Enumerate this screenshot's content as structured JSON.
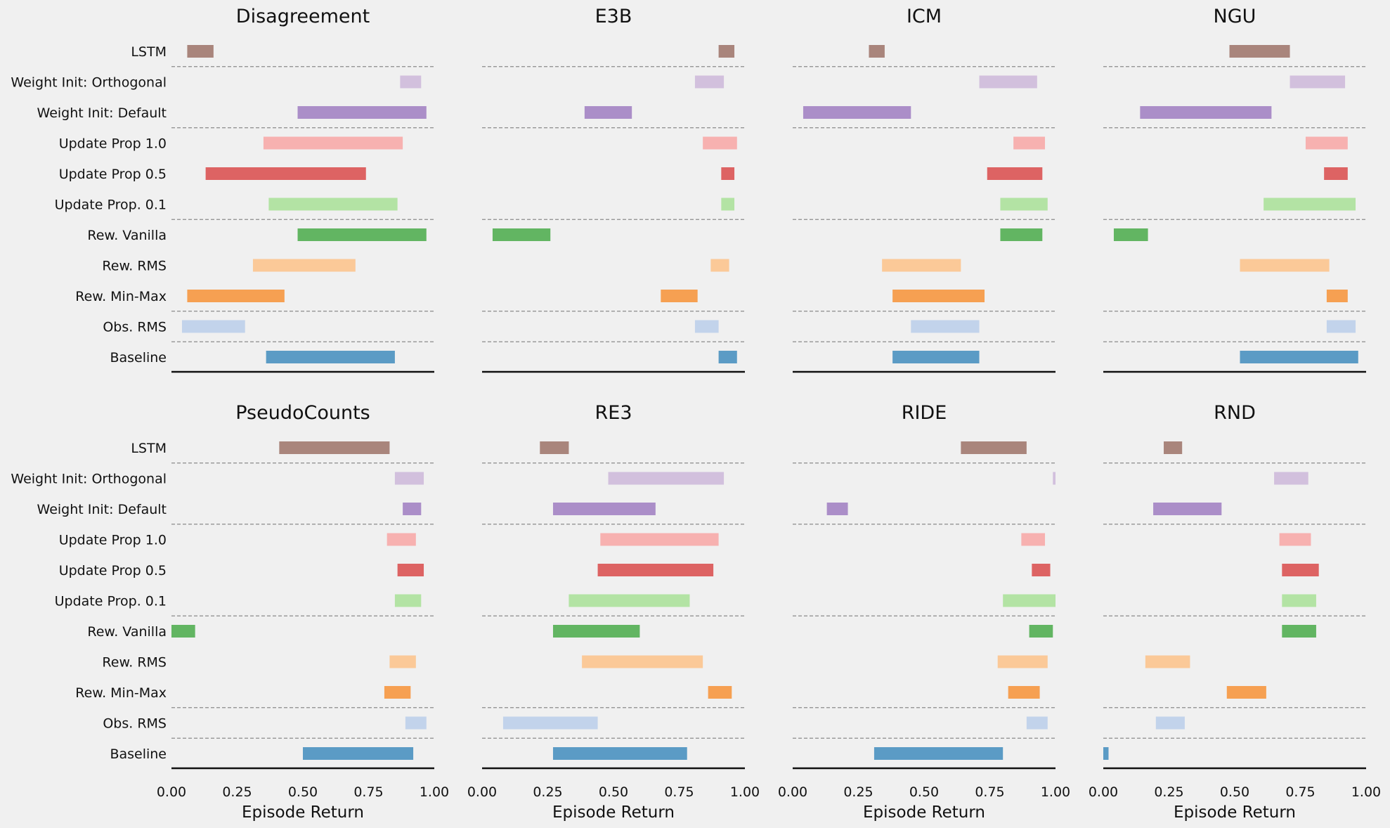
{
  "chart_data": {
    "type": "bar",
    "subtype": "floating-range",
    "xlabel": "Episode Return",
    "xlim": [
      0,
      1
    ],
    "xticks": [
      "0.00",
      "0.25",
      "0.50",
      "0.75",
      "1.00"
    ],
    "grid": false,
    "categories": [
      "LSTM",
      "Weight Init: Orthogonal",
      "Weight Init: Default",
      "Update Prop 1.0",
      "Update Prop 0.5",
      "Update Prop. 0.1",
      "Rew. Vanilla",
      "Rew. RMS",
      "Rew. Min-Max",
      "Obs. RMS",
      "Baseline"
    ],
    "colors": [
      "#a9857c",
      "#d2c0dd",
      "#ab8ec8",
      "#f7b1b0",
      "#dd6363",
      "#b3e3a4",
      "#62b562",
      "#fbc998",
      "#f6a052",
      "#c2d3eb",
      "#5b9bc5"
    ],
    "separators_after": [
      0,
      2,
      5,
      8,
      9
    ],
    "panels": [
      {
        "title": "Disagreement",
        "ranges": [
          [
            0.06,
            0.16
          ],
          [
            0.87,
            0.95
          ],
          [
            0.48,
            0.97
          ],
          [
            0.35,
            0.88
          ],
          [
            0.13,
            0.74
          ],
          [
            0.37,
            0.86
          ],
          [
            0.48,
            0.97
          ],
          [
            0.31,
            0.7
          ],
          [
            0.06,
            0.43
          ],
          [
            0.04,
            0.28
          ],
          [
            0.36,
            0.85
          ]
        ]
      },
      {
        "title": "E3B",
        "ranges": [
          [
            0.9,
            0.96
          ],
          [
            0.81,
            0.92
          ],
          [
            0.39,
            0.57
          ],
          [
            0.84,
            0.97
          ],
          [
            0.91,
            0.96
          ],
          [
            0.91,
            0.96
          ],
          [
            0.04,
            0.26
          ],
          [
            0.87,
            0.94
          ],
          [
            0.68,
            0.82
          ],
          [
            0.81,
            0.9
          ],
          [
            0.9,
            0.97
          ]
        ]
      },
      {
        "title": "ICM",
        "ranges": [
          [
            0.29,
            0.35
          ],
          [
            0.71,
            0.93
          ],
          [
            0.04,
            0.45
          ],
          [
            0.84,
            0.96
          ],
          [
            0.74,
            0.95
          ],
          [
            0.79,
            0.97
          ],
          [
            0.79,
            0.95
          ],
          [
            0.34,
            0.64
          ],
          [
            0.38,
            0.73
          ],
          [
            0.45,
            0.71
          ],
          [
            0.38,
            0.71
          ]
        ]
      },
      {
        "title": "NGU",
        "ranges": [
          [
            0.48,
            0.71
          ],
          [
            0.71,
            0.92
          ],
          [
            0.14,
            0.64
          ],
          [
            0.77,
            0.93
          ],
          [
            0.84,
            0.93
          ],
          [
            0.61,
            0.96
          ],
          [
            0.04,
            0.17
          ],
          [
            0.52,
            0.86
          ],
          [
            0.85,
            0.93
          ],
          [
            0.85,
            0.96
          ],
          [
            0.52,
            0.97
          ]
        ]
      },
      {
        "title": "PseudoCounts",
        "ranges": [
          [
            0.41,
            0.83
          ],
          [
            0.85,
            0.96
          ],
          [
            0.88,
            0.95
          ],
          [
            0.82,
            0.93
          ],
          [
            0.86,
            0.96
          ],
          [
            0.85,
            0.95
          ],
          [
            0.0,
            0.09
          ],
          [
            0.83,
            0.93
          ],
          [
            0.81,
            0.91
          ],
          [
            0.89,
            0.97
          ],
          [
            0.5,
            0.92
          ]
        ]
      },
      {
        "title": "RE3",
        "ranges": [
          [
            0.22,
            0.33
          ],
          [
            0.48,
            0.92
          ],
          [
            0.27,
            0.66
          ],
          [
            0.45,
            0.9
          ],
          [
            0.44,
            0.88
          ],
          [
            0.33,
            0.79
          ],
          [
            0.27,
            0.6
          ],
          [
            0.38,
            0.84
          ],
          [
            0.86,
            0.95
          ],
          [
            0.08,
            0.44
          ],
          [
            0.27,
            0.78
          ]
        ]
      },
      {
        "title": "RIDE",
        "ranges": [
          [
            0.64,
            0.89
          ],
          [
            0.99,
            1.0
          ],
          [
            0.13,
            0.21
          ],
          [
            0.87,
            0.96
          ],
          [
            0.91,
            0.98
          ],
          [
            0.8,
            1.0
          ],
          [
            0.9,
            0.99
          ],
          [
            0.78,
            0.97
          ],
          [
            0.82,
            0.94
          ],
          [
            0.89,
            0.97
          ],
          [
            0.31,
            0.8
          ]
        ]
      },
      {
        "title": "RND",
        "ranges": [
          [
            0.23,
            0.3
          ],
          [
            0.65,
            0.78
          ],
          [
            0.19,
            0.45
          ],
          [
            0.67,
            0.79
          ],
          [
            0.68,
            0.82
          ],
          [
            0.68,
            0.81
          ],
          [
            0.68,
            0.81
          ],
          [
            0.16,
            0.33
          ],
          [
            0.47,
            0.62
          ],
          [
            0.2,
            0.31
          ],
          [
            0.0,
            0.02
          ]
        ]
      }
    ]
  }
}
